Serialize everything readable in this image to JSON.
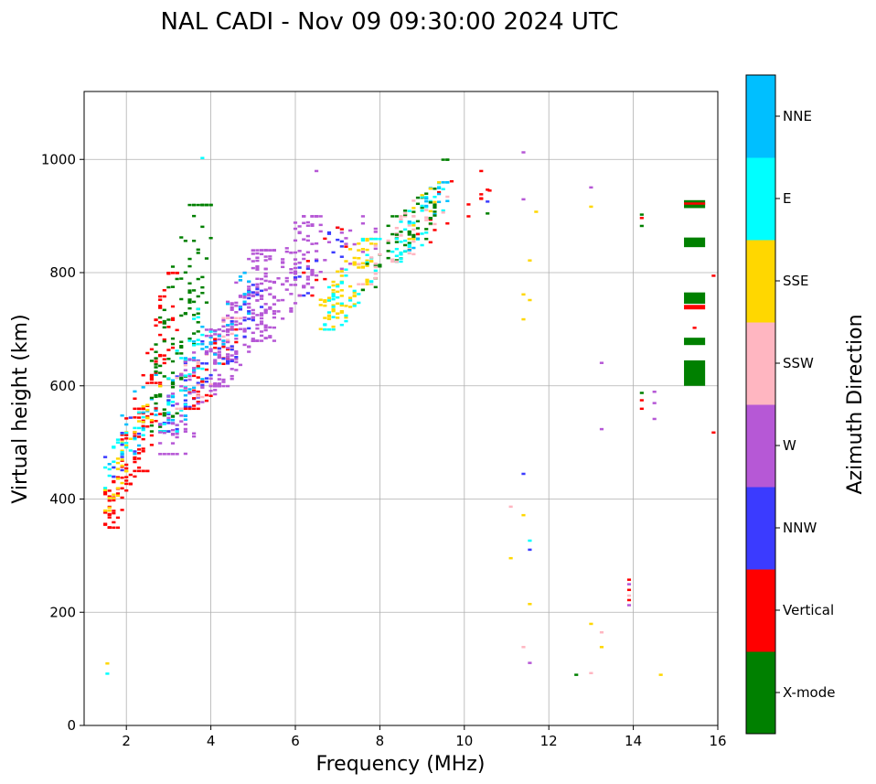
{
  "chart_data": {
    "type": "scatter",
    "title": "NAL CADI - Nov 09 09:30:00 2024 UTC",
    "xlabel": "Frequency (MHz)",
    "ylabel": "Virtual height (km)",
    "xlim": [
      1.0,
      16.0
    ],
    "ylim": [
      0,
      1120
    ],
    "xticks": [
      2,
      4,
      6,
      8,
      10,
      12,
      14,
      16
    ],
    "yticks": [
      0,
      200,
      400,
      600,
      800,
      1000
    ],
    "grid": true,
    "colorbar": {
      "label": "Azimuth Direction",
      "categories": [
        {
          "name": "X-mode",
          "color": "#008000"
        },
        {
          "name": "Vertical",
          "color": "#ff0000"
        },
        {
          "name": "NNW",
          "color": "#3b3bff"
        },
        {
          "name": "W",
          "color": "#b658d6"
        },
        {
          "name": "SSW",
          "color": "#ffb6c1"
        },
        {
          "name": "SSE",
          "color": "#ffd700"
        },
        {
          "name": "E",
          "color": "#00ffff"
        },
        {
          "name": "NNE",
          "color": "#00bfff"
        }
      ]
    },
    "clusters": [
      {
        "category": "Vertical",
        "x": [
          1.5,
          2.4
        ],
        "y": [
          350,
          560
        ],
        "n": 70
      },
      {
        "category": "SSE",
        "x": [
          1.5,
          2.2
        ],
        "y": [
          380,
          520
        ],
        "n": 25
      },
      {
        "category": "E",
        "x": [
          1.5,
          2.4
        ],
        "y": [
          420,
          560
        ],
        "n": 25
      },
      {
        "category": "NNE",
        "x": [
          1.6,
          2.8
        ],
        "y": [
          450,
          620
        ],
        "n": 20
      },
      {
        "category": "NNW",
        "x": [
          1.5,
          2.6
        ],
        "y": [
          440,
          560
        ],
        "n": 12
      },
      {
        "category": "Vertical",
        "x": [
          2.2,
          3.2
        ],
        "y": [
          450,
          800
        ],
        "n": 80
      },
      {
        "category": "SSE",
        "x": [
          2.2,
          2.8
        ],
        "y": [
          500,
          600
        ],
        "n": 12
      },
      {
        "category": "X-mode",
        "x": [
          2.6,
          4.0
        ],
        "y": [
          520,
          920
        ],
        "n": 120
      },
      {
        "category": "NNW",
        "x": [
          2.8,
          4.2
        ],
        "y": [
          520,
          680
        ],
        "n": 40
      },
      {
        "category": "E",
        "x": [
          2.8,
          4.0
        ],
        "y": [
          520,
          740
        ],
        "n": 35
      },
      {
        "category": "NNE",
        "x": [
          3.0,
          4.2
        ],
        "y": [
          540,
          720
        ],
        "n": 25
      },
      {
        "category": "Vertical",
        "x": [
          3.4,
          4.6
        ],
        "y": [
          560,
          700
        ],
        "n": 40
      },
      {
        "category": "SSW",
        "x": [
          3.2,
          4.8
        ],
        "y": [
          560,
          720
        ],
        "n": 25
      },
      {
        "category": "W",
        "x": [
          2.8,
          4.4
        ],
        "y": [
          480,
          700
        ],
        "n": 70
      },
      {
        "category": "W",
        "x": [
          4.0,
          5.5
        ],
        "y": [
          600,
          840
        ],
        "n": 170
      },
      {
        "category": "W",
        "x": [
          5.0,
          6.6
        ],
        "y": [
          680,
          900
        ],
        "n": 130
      },
      {
        "category": "NNW",
        "x": [
          4.2,
          5.2
        ],
        "y": [
          640,
          780
        ],
        "n": 25
      },
      {
        "category": "NNE",
        "x": [
          4.0,
          5.0
        ],
        "y": [
          640,
          800
        ],
        "n": 20
      },
      {
        "category": "SSE",
        "x": [
          6.6,
          7.9
        ],
        "y": [
          700,
          860
        ],
        "n": 90
      },
      {
        "category": "E",
        "x": [
          6.6,
          8.0
        ],
        "y": [
          700,
          860
        ],
        "n": 45
      },
      {
        "category": "NNW",
        "x": [
          6.0,
          7.2
        ],
        "y": [
          760,
          880
        ],
        "n": 15
      },
      {
        "category": "Vertical",
        "x": [
          6.0,
          7.2
        ],
        "y": [
          760,
          880
        ],
        "n": 10
      },
      {
        "category": "W",
        "x": [
          6.0,
          8.0
        ],
        "y": [
          760,
          900
        ],
        "n": 25
      },
      {
        "category": "X-mode",
        "x": [
          7.5,
          8.5
        ],
        "y": [
          770,
          900
        ],
        "n": 20
      },
      {
        "category": "SSW",
        "x": [
          7.5,
          8.8
        ],
        "y": [
          780,
          900
        ],
        "n": 25
      },
      {
        "category": "X-mode",
        "x": [
          8.3,
          9.1
        ],
        "y": [
          820,
          940
        ],
        "n": 25
      },
      {
        "category": "E",
        "x": [
          8.3,
          9.6
        ],
        "y": [
          820,
          960
        ],
        "n": 40
      },
      {
        "category": "SSW",
        "x": [
          8.3,
          9.6
        ],
        "y": [
          820,
          960
        ],
        "n": 20
      },
      {
        "category": "Vertical",
        "x": [
          8.5,
          10.6
        ],
        "y": [
          840,
          980
        ],
        "n": 14
      },
      {
        "category": "NNE",
        "x": [
          8.6,
          9.6
        ],
        "y": [
          840,
          960
        ],
        "n": 15
      },
      {
        "category": "X-mode",
        "x": [
          9.0,
          9.6
        ],
        "y": [
          860,
          1000
        ],
        "n": 15
      },
      {
        "category": "SSE",
        "x": [
          8.6,
          9.4
        ],
        "y": [
          860,
          960
        ],
        "n": 10
      }
    ],
    "points": [
      {
        "x": 1.55,
        "y": 92,
        "c": "E"
      },
      {
        "x": 1.55,
        "y": 110,
        "c": "SSE"
      },
      {
        "x": 3.8,
        "y": 1003,
        "c": "E"
      },
      {
        "x": 6.5,
        "y": 980,
        "c": "W"
      },
      {
        "x": 11.4,
        "y": 1013,
        "c": "W"
      },
      {
        "x": 11.4,
        "y": 930,
        "c": "W"
      },
      {
        "x": 11.7,
        "y": 908,
        "c": "SSE"
      },
      {
        "x": 11.55,
        "y": 822,
        "c": "SSE"
      },
      {
        "x": 11.4,
        "y": 762,
        "c": "SSE"
      },
      {
        "x": 11.55,
        "y": 752,
        "c": "SSE"
      },
      {
        "x": 11.4,
        "y": 718,
        "c": "SSE"
      },
      {
        "x": 11.4,
        "y": 445,
        "c": "NNW"
      },
      {
        "x": 11.1,
        "y": 387,
        "c": "SSW"
      },
      {
        "x": 11.4,
        "y": 372,
        "c": "SSE"
      },
      {
        "x": 11.55,
        "y": 327,
        "c": "E"
      },
      {
        "x": 11.55,
        "y": 311,
        "c": "NNW"
      },
      {
        "x": 11.1,
        "y": 296,
        "c": "SSE"
      },
      {
        "x": 11.55,
        "y": 215,
        "c": "SSE"
      },
      {
        "x": 11.4,
        "y": 139,
        "c": "SSW"
      },
      {
        "x": 11.55,
        "y": 111,
        "c": "W"
      },
      {
        "x": 10.1,
        "y": 921,
        "c": "Vertical"
      },
      {
        "x": 10.55,
        "y": 947,
        "c": "Vertical"
      },
      {
        "x": 10.55,
        "y": 926,
        "c": "NNW"
      },
      {
        "x": 10.55,
        "y": 905,
        "c": "X-mode"
      },
      {
        "x": 13.0,
        "y": 951,
        "c": "W"
      },
      {
        "x": 13.0,
        "y": 917,
        "c": "SSE"
      },
      {
        "x": 13.25,
        "y": 641,
        "c": "W"
      },
      {
        "x": 13.25,
        "y": 524,
        "c": "W"
      },
      {
        "x": 13.0,
        "y": 180,
        "c": "SSE"
      },
      {
        "x": 13.25,
        "y": 165,
        "c": "SSW"
      },
      {
        "x": 13.25,
        "y": 139,
        "c": "SSE"
      },
      {
        "x": 13.0,
        "y": 93,
        "c": "SSW"
      },
      {
        "x": 12.65,
        "y": 90,
        "c": "X-mode"
      },
      {
        "x": 14.65,
        "y": 90,
        "c": "SSE"
      },
      {
        "x": 14.2,
        "y": 903,
        "c": "X-mode"
      },
      {
        "x": 14.2,
        "y": 897,
        "c": "Vertical"
      },
      {
        "x": 14.2,
        "y": 883,
        "c": "X-mode"
      },
      {
        "x": 14.2,
        "y": 588,
        "c": "X-mode"
      },
      {
        "x": 14.5,
        "y": 590,
        "c": "W"
      },
      {
        "x": 14.2,
        "y": 575,
        "c": "Vertical"
      },
      {
        "x": 14.5,
        "y": 570,
        "c": "W"
      },
      {
        "x": 14.2,
        "y": 560,
        "c": "Vertical"
      },
      {
        "x": 14.5,
        "y": 542,
        "c": "W"
      },
      {
        "x": 13.9,
        "y": 258,
        "c": "Vertical"
      },
      {
        "x": 13.9,
        "y": 250,
        "c": "W"
      },
      {
        "x": 13.9,
        "y": 240,
        "c": "Vertical"
      },
      {
        "x": 13.9,
        "y": 230,
        "c": "SSW"
      },
      {
        "x": 13.9,
        "y": 222,
        "c": "Vertical"
      },
      {
        "x": 13.9,
        "y": 213,
        "c": "W"
      },
      {
        "x": 15.9,
        "y": 795,
        "c": "Vertical"
      },
      {
        "x": 15.9,
        "y": 518,
        "c": "Vertical"
      },
      {
        "x": 15.45,
        "y": 703,
        "c": "Vertical"
      }
    ],
    "blocks": [
      {
        "x0": 15.2,
        "x1": 15.7,
        "y0": 914,
        "y1": 928,
        "c": "X-mode"
      },
      {
        "x0": 15.2,
        "x1": 15.7,
        "y0": 920,
        "y1": 924,
        "c": "Vertical"
      },
      {
        "x0": 15.2,
        "x1": 15.7,
        "y0": 845,
        "y1": 862,
        "c": "X-mode"
      },
      {
        "x0": 15.2,
        "x1": 15.7,
        "y0": 745,
        "y1": 765,
        "c": "X-mode"
      },
      {
        "x0": 15.2,
        "x1": 15.7,
        "y0": 735,
        "y1": 743,
        "c": "Vertical"
      },
      {
        "x0": 15.2,
        "x1": 15.7,
        "y0": 672,
        "y1": 685,
        "c": "X-mode"
      },
      {
        "x0": 15.2,
        "x1": 15.7,
        "y0": 600,
        "y1": 645,
        "c": "X-mode"
      }
    ]
  }
}
